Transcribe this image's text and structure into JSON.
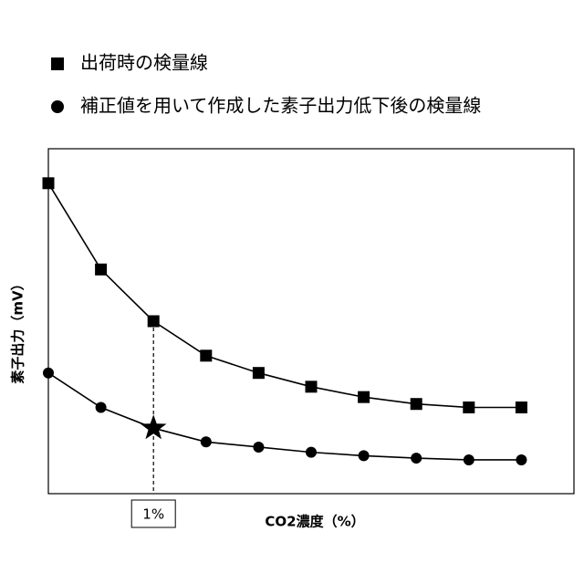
{
  "chart_data": {
    "type": "line",
    "categories": [
      null,
      null,
      "1%",
      null,
      null,
      null,
      null,
      null,
      null,
      null
    ],
    "series": [
      {
        "name": "出荷時の検量線",
        "color": "#000000",
        "marker": "square",
        "values": [
          90,
          65,
          50,
          40,
          35,
          31,
          28,
          26,
          25,
          25
        ]
      },
      {
        "name": "補正値を用いて作成した素子出力低下後の検量線",
        "color": "#000000",
        "marker": "circle",
        "values": [
          35,
          25,
          19,
          15,
          13.5,
          12,
          11,
          10.3,
          9.8,
          9.8
        ]
      }
    ],
    "highlight_index": 2,
    "x_label": "CO2濃度（%）",
    "y_label": "素子出力（mV）",
    "ylim": [
      0,
      100
    ]
  }
}
